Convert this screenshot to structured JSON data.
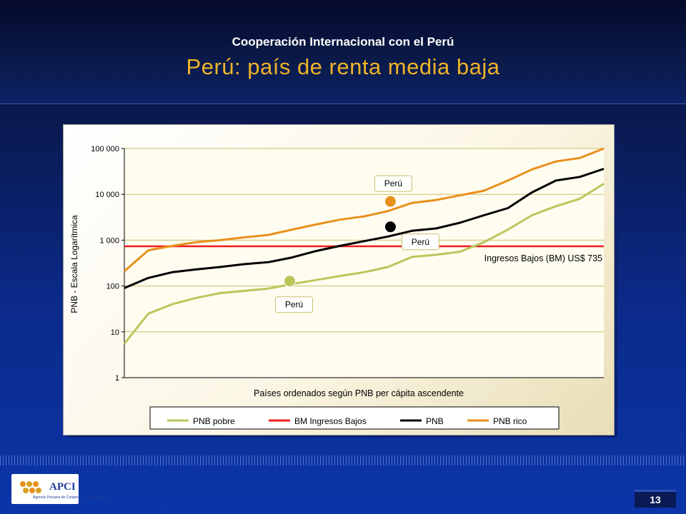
{
  "slide": {
    "subtitle": "Cooperación Internacional con el Perú",
    "title": "Perú: país de renta media baja",
    "page_number": "13",
    "logo": {
      "name": "APCI",
      "tagline": "Agencia Peruana de Cooperación Internacional"
    }
  },
  "chart_data": {
    "type": "line",
    "title": "",
    "xlabel": "Países ordenados según PNB per cápita ascendente",
    "ylabel": "PNB - Escala Logarítmica",
    "yscale": "log",
    "ylim": [
      1,
      100000
    ],
    "yticks": [
      1,
      10,
      100,
      1000,
      10000,
      100000
    ],
    "ytick_labels": [
      "1",
      "10",
      "100",
      "1 000",
      "10 000",
      "100 000"
    ],
    "x": [
      0,
      0.05,
      0.1,
      0.15,
      0.2,
      0.25,
      0.3,
      0.35,
      0.4,
      0.45,
      0.5,
      0.55,
      0.6,
      0.65,
      0.7,
      0.75,
      0.8,
      0.85,
      0.9,
      0.95,
      1
    ],
    "series": [
      {
        "name": "PNB pobre",
        "color": "#b9c75c",
        "values": [
          5.5,
          25,
          40,
          55,
          70,
          78,
          88,
          110,
          135,
          165,
          200,
          260,
          430,
          480,
          560,
          900,
          1700,
          3500,
          5500,
          8000,
          17000
        ]
      },
      {
        "name": "BM Ingresos Bajos",
        "color": "#ee1c1c",
        "values": [
          735,
          735,
          735,
          735,
          735,
          735,
          735,
          735,
          735,
          735,
          735,
          735,
          735,
          735,
          735,
          735,
          735,
          735,
          735,
          735,
          735
        ]
      },
      {
        "name": "PNB",
        "color": "#000000",
        "values": [
          90,
          150,
          200,
          230,
          260,
          300,
          330,
          420,
          580,
          750,
          950,
          1200,
          1600,
          1800,
          2400,
          3500,
          5000,
          11000,
          20000,
          24000,
          36000
        ]
      },
      {
        "name": "PNB rico",
        "color": "#e8901c",
        "values": [
          210,
          600,
          750,
          900,
          1000,
          1150,
          1300,
          1700,
          2200,
          2800,
          3300,
          4300,
          6500,
          7500,
          9500,
          12000,
          20000,
          35000,
          52000,
          62000,
          100000
        ]
      }
    ],
    "legend_position": "bottom",
    "reference_line_label": "Ingresos Bajos (BM) US$ 735",
    "annotations": [
      {
        "text": "Perú",
        "series": "PNB rico",
        "x": 0.555,
        "y": 7000,
        "color": "#e8901c"
      },
      {
        "text": "Perú",
        "series": "PNB",
        "x": 0.555,
        "y": 1950,
        "color": "#000000"
      },
      {
        "text": "Perú",
        "series": "PNB pobre",
        "x": 0.345,
        "y": 128,
        "color": "#b9c75c"
      }
    ],
    "grid": true
  }
}
